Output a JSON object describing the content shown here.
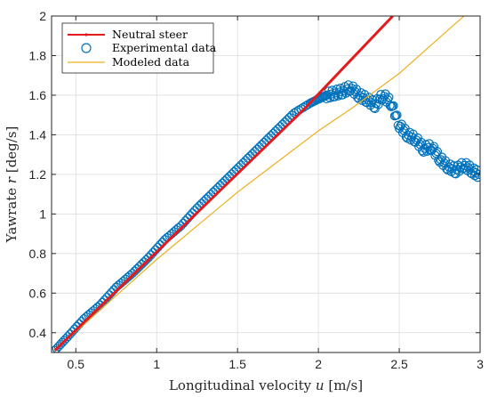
{
  "chart_data": {
    "type": "scatter",
    "xlabel": "Longitudinal velocity u [m/s]",
    "xlabel_parts": {
      "prefix": "Longitudinal velocity ",
      "var": "u",
      "suffix": " [m/s]"
    },
    "ylabel": "Yawrate r [deg/s]",
    "ylabel_parts": {
      "prefix": "Yawrate ",
      "var": "r",
      "suffix": " [deg/s]"
    },
    "xlim": [
      0.35,
      3.0
    ],
    "ylim": [
      0.3,
      2.0
    ],
    "xticks": [
      0.5,
      1,
      1.5,
      2,
      2.5,
      3
    ],
    "xtick_labels": [
      "0.5",
      "1",
      "1.5",
      "2",
      "2.5",
      "3"
    ],
    "yticks": [
      0.4,
      0.6,
      0.8,
      1.0,
      1.2,
      1.4,
      1.6,
      1.8,
      2.0
    ],
    "ytick_labels": [
      "0.4",
      "0.6",
      "0.8",
      "1",
      "1.2",
      "1.4",
      "1.6",
      "1.8",
      "2"
    ],
    "grid": true,
    "legend_position": "top-left",
    "series": [
      {
        "name": "Neutral steer",
        "style": "line",
        "color": "#e41a1c",
        "x": [
          0.37,
          1.9,
          2.46
        ],
        "y": [
          0.31,
          1.52,
          2.0
        ]
      },
      {
        "name": "Experimental data",
        "style": "markers",
        "color": "#0072bd",
        "x": [
          0.37,
          0.45,
          0.55,
          0.65,
          0.75,
          0.85,
          0.95,
          1.05,
          1.15,
          1.25,
          1.35,
          1.45,
          1.55,
          1.65,
          1.75,
          1.85,
          1.95,
          2.0,
          2.05,
          2.1,
          2.15,
          2.2,
          2.25,
          2.3,
          2.35,
          2.4,
          2.45,
          2.5,
          2.55,
          2.6,
          2.65,
          2.7,
          2.75,
          2.8,
          2.85,
          2.9,
          2.95,
          2.99
        ],
        "y": [
          0.31,
          0.38,
          0.47,
          0.54,
          0.63,
          0.7,
          0.78,
          0.87,
          0.94,
          1.03,
          1.11,
          1.19,
          1.27,
          1.35,
          1.43,
          1.51,
          1.56,
          1.58,
          1.6,
          1.61,
          1.62,
          1.64,
          1.6,
          1.58,
          1.55,
          1.6,
          1.56,
          1.45,
          1.4,
          1.38,
          1.33,
          1.34,
          1.28,
          1.24,
          1.22,
          1.25,
          1.22,
          1.2
        ]
      },
      {
        "name": "Modeled data",
        "style": "line",
        "color": "#edb120",
        "x": [
          0.37,
          1.0,
          1.5,
          2.0,
          2.2,
          2.5,
          2.9
        ],
        "y": [
          0.31,
          0.77,
          1.11,
          1.42,
          1.53,
          1.71,
          2.0
        ]
      }
    ]
  }
}
